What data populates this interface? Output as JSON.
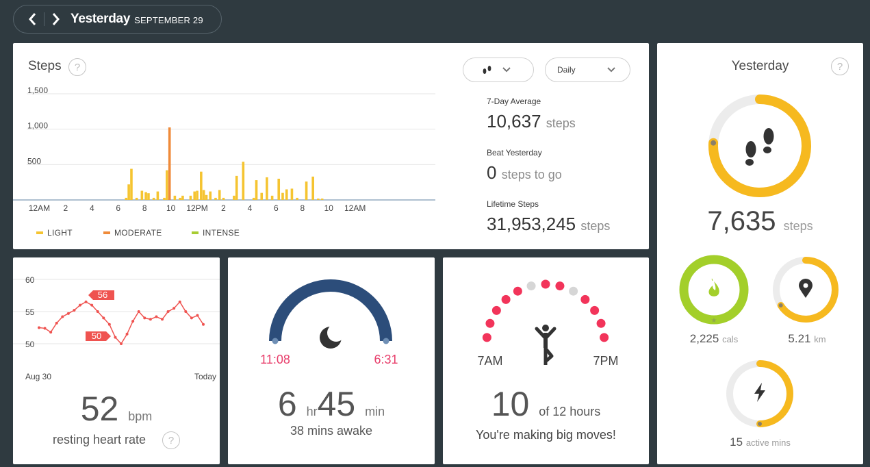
{
  "header": {
    "title": "Yesterday",
    "date": "SEPTEMBER 29"
  },
  "steps": {
    "title": "Steps",
    "help": "?",
    "period_select": "Daily",
    "chart_data": {
      "type": "bar",
      "y_ticks": [
        "1,500",
        "1,000",
        "500"
      ],
      "ylim": [
        0,
        1500
      ],
      "x_labels": [
        "12AM",
        "2",
        "4",
        "6",
        "8",
        "10",
        "12PM",
        "2",
        "4",
        "6",
        "8",
        "10",
        "12AM"
      ],
      "x_range_hours": [
        -2,
        30
      ],
      "series": [
        {
          "name": "LIGHT",
          "color": "#f5c431",
          "points": [
            [
              6.6,
              30
            ],
            [
              6.8,
              220
            ],
            [
              7.0,
              440
            ],
            [
              7.4,
              30
            ],
            [
              7.8,
              130
            ],
            [
              8.1,
              110
            ],
            [
              8.3,
              95
            ],
            [
              8.7,
              30
            ],
            [
              9.0,
              120
            ],
            [
              9.5,
              30
            ],
            [
              9.7,
              420
            ],
            [
              10.3,
              60
            ],
            [
              10.7,
              30
            ],
            [
              10.9,
              60
            ],
            [
              11.5,
              60
            ],
            [
              11.8,
              120
            ],
            [
              12.0,
              130
            ],
            [
              12.3,
              400
            ],
            [
              12.5,
              140
            ],
            [
              12.7,
              70
            ],
            [
              13.0,
              120
            ],
            [
              13.4,
              30
            ],
            [
              13.7,
              140
            ],
            [
              14.0,
              30
            ],
            [
              14.8,
              60
            ],
            [
              15.0,
              340
            ],
            [
              15.5,
              540
            ],
            [
              16.3,
              30
            ],
            [
              16.5,
              280
            ],
            [
              16.9,
              100
            ],
            [
              17.3,
              320
            ],
            [
              17.7,
              60
            ],
            [
              18.2,
              300
            ],
            [
              18.5,
              100
            ],
            [
              18.8,
              150
            ],
            [
              19.2,
              160
            ],
            [
              19.6,
              30
            ],
            [
              20.3,
              260
            ],
            [
              20.8,
              330
            ],
            [
              21.2,
              20
            ],
            [
              21.5,
              20
            ]
          ]
        },
        {
          "name": "MODERATE",
          "color": "#ef8b3a",
          "points": [
            [
              9.9,
              1025
            ]
          ]
        },
        {
          "name": "INTENSE",
          "color": "#a7cc32",
          "points": []
        }
      ]
    },
    "legend": [
      "LIGHT",
      "MODERATE",
      "INTENSE"
    ],
    "stats": [
      {
        "label": "7-Day Average",
        "value": "10,637",
        "unit": "steps"
      },
      {
        "label": "Beat Yesterday",
        "value": "0",
        "unit": "steps to go"
      },
      {
        "label": "Lifetime Steps",
        "value": "31,953,245",
        "unit": "steps"
      }
    ]
  },
  "yesterday": {
    "title": "Yesterday",
    "steps_value": "7,635",
    "steps_unit": "steps",
    "steps_progress": 0.76,
    "cals_value": "2,225",
    "cals_unit": "cals",
    "cals_progress": 1.0,
    "km_value": "5.21",
    "km_unit": "km",
    "km_progress": 0.66,
    "active_value": "15",
    "active_unit": "active mins",
    "active_progress": 0.5,
    "colors": {
      "steps": "#f6b91f",
      "cals": "#a3cf2a",
      "km": "#f6b91f",
      "active": "#f6b91f"
    }
  },
  "heart": {
    "y_ticks": [
      "60",
      "55",
      "50"
    ],
    "callout_high": "56",
    "callout_low": "50",
    "x_start": "Aug 30",
    "x_end": "Today",
    "value": "52",
    "unit": "bpm",
    "label": "resting heart rate",
    "chart_data": {
      "type": "line",
      "ylim": [
        48,
        61
      ],
      "values": [
        52.5,
        52.4,
        51.8,
        53.2,
        54.2,
        54.7,
        55.2,
        56,
        56.5,
        56,
        55,
        54,
        53,
        51,
        50,
        51.5,
        53.5,
        55,
        54,
        53.8,
        54.2,
        53.8,
        55,
        55.5,
        56.5,
        55,
        54,
        54.4,
        53
      ]
    }
  },
  "sleep": {
    "start": "11:08",
    "end": "6:31",
    "hr": "6",
    "hr_unit": "hr",
    "min": "45",
    "min_unit": "min",
    "awake": "38 mins awake"
  },
  "hourly": {
    "start": "7AM",
    "end": "7PM",
    "value": "10",
    "of_text": "of 12 hours",
    "message": "You're making big moves!",
    "hours_active": [
      true,
      true,
      true,
      true,
      true,
      false,
      true,
      true,
      false,
      true,
      true,
      true,
      true
    ]
  }
}
